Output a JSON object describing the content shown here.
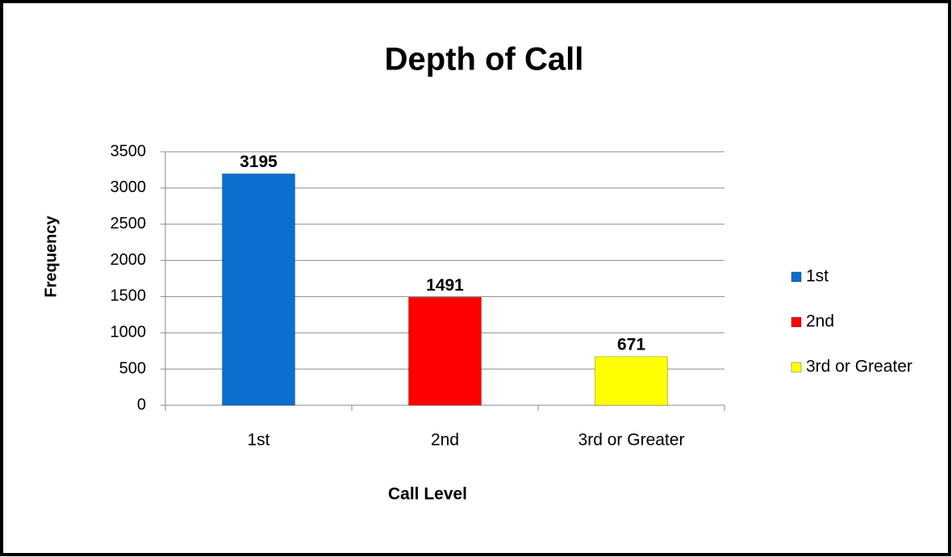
{
  "chart_data": {
    "type": "bar",
    "title": "Depth of Call",
    "x_label": "Call Level",
    "y_label": "Frequency",
    "categories": [
      "1st",
      "2nd",
      "3rd or Greater"
    ],
    "values": [
      3195,
      1491,
      671
    ],
    "colors": [
      "#0a6fcf",
      "#ff0000",
      "#ffff00"
    ],
    "ylim": [
      0,
      3500
    ],
    "yticks": [
      0,
      500,
      1000,
      1500,
      2000,
      2500,
      3000,
      3500
    ],
    "grid": true,
    "legend": "right"
  }
}
